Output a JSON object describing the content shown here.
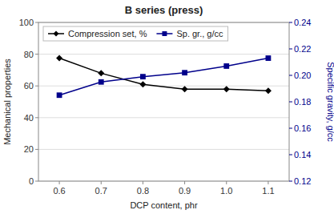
{
  "chart_data": {
    "type": "line",
    "title": "B series (press)",
    "xlabel": "DCP content, phr",
    "ylabel": "Mechanical properties",
    "y2label": "Specific gravity, g/cc",
    "x": [
      0.6,
      0.7,
      0.8,
      0.9,
      1.0,
      1.1
    ],
    "series": [
      {
        "name": "Compression set, %",
        "color": "#000000",
        "marker": "diamond",
        "values": [
          77.5,
          68.0,
          61.0,
          58.0,
          58.0,
          57.0
        ]
      },
      {
        "name": "Sp. gr., g/cc",
        "color": "#00008B",
        "marker": "square",
        "axis": "y2",
        "values": [
          0.185,
          0.195,
          0.199,
          0.202,
          0.207,
          0.213
        ]
      }
    ],
    "xlim": [
      0.55,
      1.15
    ],
    "xticks": [
      0.6,
      0.7,
      0.8,
      0.9,
      {
        "value": 1.0,
        "label": "1.0"
      },
      1.1
    ],
    "ylim": [
      0,
      100
    ],
    "yticks": [
      0,
      20,
      40,
      60,
      80,
      100
    ],
    "y2lim": [
      0.12,
      0.24
    ],
    "y2ticks": [
      0.12,
      0.14,
      0.16,
      0.18,
      {
        "value": 0.2,
        "label": "0.20"
      },
      0.22,
      0.24
    ],
    "grid": true,
    "legend": "upper left"
  }
}
